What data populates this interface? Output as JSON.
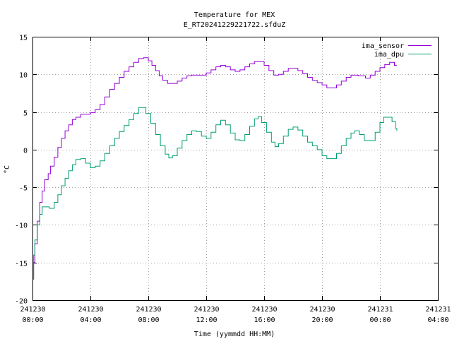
{
  "chart_data": {
    "type": "line",
    "title": "Temperature for MEX",
    "subtitle": "E_RT20241229221722.sfduZ",
    "xlabel": "Time (yymmdd HH:MM)",
    "ylabel": "°C",
    "ylim": [
      -20,
      15
    ],
    "yticks": [
      -20,
      -15,
      -10,
      -5,
      0,
      5,
      10,
      15
    ],
    "xlim": [
      "2024-12-30 00:00",
      "2024-12-31 04:00"
    ],
    "xticks": [
      {
        "x": "2024-12-30 00:00",
        "date": "241230",
        "time": "00:00"
      },
      {
        "x": "2024-12-30 04:00",
        "date": "241230",
        "time": "04:00"
      },
      {
        "x": "2024-12-30 08:00",
        "date": "241230",
        "time": "08:00"
      },
      {
        "x": "2024-12-30 12:00",
        "date": "241230",
        "time": "12:00"
      },
      {
        "x": "2024-12-30 16:00",
        "date": "241230",
        "time": "16:00"
      },
      {
        "x": "2024-12-30 20:00",
        "date": "241230",
        "time": "20:00"
      },
      {
        "x": "2024-12-31 00:00",
        "date": "241231",
        "time": "00:00"
      },
      {
        "x": "2024-12-31 04:00",
        "date": "241231",
        "time": "04:00"
      }
    ],
    "grid": true,
    "legend_position": "top-right",
    "step": true,
    "series": [
      {
        "name": "ima_sensor",
        "color": "#9400d3",
        "points": [
          [
            "2024-12-30 00:00",
            -17.2
          ],
          [
            "2024-12-30 00:05",
            -15.0
          ],
          [
            "2024-12-30 00:10",
            -12.5
          ],
          [
            "2024-12-30 00:20",
            -9.5
          ],
          [
            "2024-12-30 00:30",
            -7.0
          ],
          [
            "2024-12-30 00:40",
            -5.5
          ],
          [
            "2024-12-30 00:50",
            -4.0
          ],
          [
            "2024-12-30 01:05",
            -3.2
          ],
          [
            "2024-12-30 01:15",
            -2.2
          ],
          [
            "2024-12-30 01:30",
            -1.0
          ],
          [
            "2024-12-30 01:45",
            0.3
          ],
          [
            "2024-12-30 02:00",
            1.5
          ],
          [
            "2024-12-30 02:15",
            2.5
          ],
          [
            "2024-12-30 02:30",
            3.3
          ],
          [
            "2024-12-30 02:45",
            4.0
          ],
          [
            "2024-12-30 03:00",
            4.3
          ],
          [
            "2024-12-30 03:20",
            4.7
          ],
          [
            "2024-12-30 04:00",
            4.9
          ],
          [
            "2024-12-30 04:20",
            5.3
          ],
          [
            "2024-12-30 04:40",
            6.0
          ],
          [
            "2024-12-30 05:00",
            7.0
          ],
          [
            "2024-12-30 05:20",
            8.0
          ],
          [
            "2024-12-30 05:40",
            8.8
          ],
          [
            "2024-12-30 06:00",
            9.6
          ],
          [
            "2024-12-30 06:20",
            10.4
          ],
          [
            "2024-12-30 06:40",
            11.0
          ],
          [
            "2024-12-30 07:00",
            11.6
          ],
          [
            "2024-12-30 07:20",
            12.1
          ],
          [
            "2024-12-30 07:40",
            12.2
          ],
          [
            "2024-12-30 08:00",
            11.8
          ],
          [
            "2024-12-30 08:15",
            11.2
          ],
          [
            "2024-12-30 08:30",
            10.5
          ],
          [
            "2024-12-30 08:45",
            9.8
          ],
          [
            "2024-12-30 09:00",
            9.2
          ],
          [
            "2024-12-30 09:20",
            8.8
          ],
          [
            "2024-12-30 09:40",
            8.8
          ],
          [
            "2024-12-30 10:00",
            9.1
          ],
          [
            "2024-12-30 10:20",
            9.5
          ],
          [
            "2024-12-30 10:40",
            9.8
          ],
          [
            "2024-12-30 11:00",
            9.9
          ],
          [
            "2024-12-30 11:30",
            9.9
          ],
          [
            "2024-12-30 12:00",
            10.2
          ],
          [
            "2024-12-30 12:20",
            10.6
          ],
          [
            "2024-12-30 12:40",
            11.0
          ],
          [
            "2024-12-30 13:00",
            11.2
          ],
          [
            "2024-12-30 13:20",
            11.0
          ],
          [
            "2024-12-30 13:40",
            10.6
          ],
          [
            "2024-12-30 14:00",
            10.4
          ],
          [
            "2024-12-30 14:20",
            10.6
          ],
          [
            "2024-12-30 14:40",
            11.0
          ],
          [
            "2024-12-30 15:00",
            11.4
          ],
          [
            "2024-12-30 15:20",
            11.7
          ],
          [
            "2024-12-30 15:40",
            11.7
          ],
          [
            "2024-12-30 16:00",
            11.2
          ],
          [
            "2024-12-30 16:20",
            10.5
          ],
          [
            "2024-12-30 16:40",
            9.9
          ],
          [
            "2024-12-30 17:00",
            10.0
          ],
          [
            "2024-12-30 17:20",
            10.4
          ],
          [
            "2024-12-30 17:40",
            10.8
          ],
          [
            "2024-12-30 18:00",
            10.8
          ],
          [
            "2024-12-30 18:20",
            10.5
          ],
          [
            "2024-12-30 18:40",
            10.1
          ],
          [
            "2024-12-30 19:00",
            9.6
          ],
          [
            "2024-12-30 19:20",
            9.2
          ],
          [
            "2024-12-30 19:40",
            8.9
          ],
          [
            "2024-12-30 20:00",
            8.6
          ],
          [
            "2024-12-30 20:20",
            8.2
          ],
          [
            "2024-12-30 20:40",
            8.2
          ],
          [
            "2024-12-30 21:00",
            8.6
          ],
          [
            "2024-12-30 21:20",
            9.1
          ],
          [
            "2024-12-30 21:40",
            9.6
          ],
          [
            "2024-12-30 22:00",
            9.9
          ],
          [
            "2024-12-30 22:30",
            9.8
          ],
          [
            "2024-12-30 23:00",
            9.5
          ],
          [
            "2024-12-30 23:20",
            9.9
          ],
          [
            "2024-12-30 23:40",
            10.4
          ],
          [
            "2024-12-31 00:00",
            10.9
          ],
          [
            "2024-12-31 00:20",
            11.3
          ],
          [
            "2024-12-31 00:40",
            11.6
          ],
          [
            "2024-12-31 00:55",
            11.6
          ],
          [
            "2024-12-31 01:00",
            11.2
          ],
          [
            "2024-12-31 01:10",
            11.2
          ]
        ]
      },
      {
        "name": "ima_dpu",
        "color": "#009e73",
        "points": [
          [
            "2024-12-30 00:00",
            -15.0
          ],
          [
            "2024-12-30 00:05",
            -14.0
          ],
          [
            "2024-12-30 00:10",
            -12.0
          ],
          [
            "2024-12-30 00:20",
            -10.0
          ],
          [
            "2024-12-30 00:30",
            -8.6
          ],
          [
            "2024-12-30 00:40",
            -7.6
          ],
          [
            "2024-12-30 01:00",
            -7.6
          ],
          [
            "2024-12-30 01:10",
            -7.8
          ],
          [
            "2024-12-30 01:30",
            -7.0
          ],
          [
            "2024-12-30 01:45",
            -6.0
          ],
          [
            "2024-12-30 02:00",
            -4.8
          ],
          [
            "2024-12-30 02:15",
            -3.8
          ],
          [
            "2024-12-30 02:30",
            -2.8
          ],
          [
            "2024-12-30 02:45",
            -2.0
          ],
          [
            "2024-12-30 03:00",
            -1.3
          ],
          [
            "2024-12-30 03:20",
            -1.2
          ],
          [
            "2024-12-30 03:40",
            -1.8
          ],
          [
            "2024-12-30 04:00",
            -2.4
          ],
          [
            "2024-12-30 04:20",
            -2.2
          ],
          [
            "2024-12-30 04:40",
            -1.5
          ],
          [
            "2024-12-30 05:00",
            -0.5
          ],
          [
            "2024-12-30 05:20",
            0.5
          ],
          [
            "2024-12-30 05:40",
            1.5
          ],
          [
            "2024-12-30 06:00",
            2.4
          ],
          [
            "2024-12-30 06:20",
            3.2
          ],
          [
            "2024-12-30 06:40",
            4.0
          ],
          [
            "2024-12-30 07:00",
            4.8
          ],
          [
            "2024-12-30 07:20",
            5.6
          ],
          [
            "2024-12-30 07:35",
            5.6
          ],
          [
            "2024-12-30 07:50",
            4.8
          ],
          [
            "2024-12-30 08:10",
            3.5
          ],
          [
            "2024-12-30 08:30",
            2.0
          ],
          [
            "2024-12-30 08:50",
            0.5
          ],
          [
            "2024-12-30 09:10",
            -0.6
          ],
          [
            "2024-12-30 09:25",
            -1.1
          ],
          [
            "2024-12-30 09:40",
            -0.8
          ],
          [
            "2024-12-30 10:00",
            0.2
          ],
          [
            "2024-12-30 10:20",
            1.2
          ],
          [
            "2024-12-30 10:40",
            2.0
          ],
          [
            "2024-12-30 11:00",
            2.5
          ],
          [
            "2024-12-30 11:20",
            2.4
          ],
          [
            "2024-12-30 11:40",
            1.8
          ],
          [
            "2024-12-30 12:00",
            1.5
          ],
          [
            "2024-12-30 12:20",
            2.3
          ],
          [
            "2024-12-30 12:40",
            3.3
          ],
          [
            "2024-12-30 13:00",
            3.9
          ],
          [
            "2024-12-30 13:20",
            3.3
          ],
          [
            "2024-12-30 13:40",
            2.2
          ],
          [
            "2024-12-30 14:00",
            1.3
          ],
          [
            "2024-12-30 14:20",
            1.2
          ],
          [
            "2024-12-30 14:40",
            2.0
          ],
          [
            "2024-12-30 15:00",
            3.1
          ],
          [
            "2024-12-30 15:20",
            4.1
          ],
          [
            "2024-12-30 15:35",
            4.4
          ],
          [
            "2024-12-30 15:50",
            3.6
          ],
          [
            "2024-12-30 16:10",
            2.3
          ],
          [
            "2024-12-30 16:30",
            1.0
          ],
          [
            "2024-12-30 16:45",
            0.4
          ],
          [
            "2024-12-30 17:00",
            0.8
          ],
          [
            "2024-12-30 17:20",
            1.8
          ],
          [
            "2024-12-30 17:40",
            2.7
          ],
          [
            "2024-12-30 18:00",
            3.0
          ],
          [
            "2024-12-30 18:20",
            2.6
          ],
          [
            "2024-12-30 18:40",
            1.8
          ],
          [
            "2024-12-30 19:00",
            1.0
          ],
          [
            "2024-12-30 19:20",
            0.5
          ],
          [
            "2024-12-30 19:40",
            0.0
          ],
          [
            "2024-12-30 20:00",
            -0.8
          ],
          [
            "2024-12-30 20:20",
            -1.2
          ],
          [
            "2024-12-30 20:40",
            -1.2
          ],
          [
            "2024-12-30 21:00",
            -0.5
          ],
          [
            "2024-12-30 21:20",
            0.5
          ],
          [
            "2024-12-30 21:40",
            1.5
          ],
          [
            "2024-12-30 22:00",
            2.2
          ],
          [
            "2024-12-30 22:15",
            2.5
          ],
          [
            "2024-12-30 22:35",
            2.0
          ],
          [
            "2024-12-30 22:55",
            1.2
          ],
          [
            "2024-12-30 23:20",
            1.2
          ],
          [
            "2024-12-30 23:40",
            2.3
          ],
          [
            "2024-12-31 00:00",
            3.6
          ],
          [
            "2024-12-31 00:15",
            4.3
          ],
          [
            "2024-12-31 00:35",
            4.3
          ],
          [
            "2024-12-31 00:50",
            3.7
          ],
          [
            "2024-12-31 01:05",
            2.8
          ],
          [
            "2024-12-31 01:10",
            2.5
          ]
        ]
      }
    ]
  }
}
